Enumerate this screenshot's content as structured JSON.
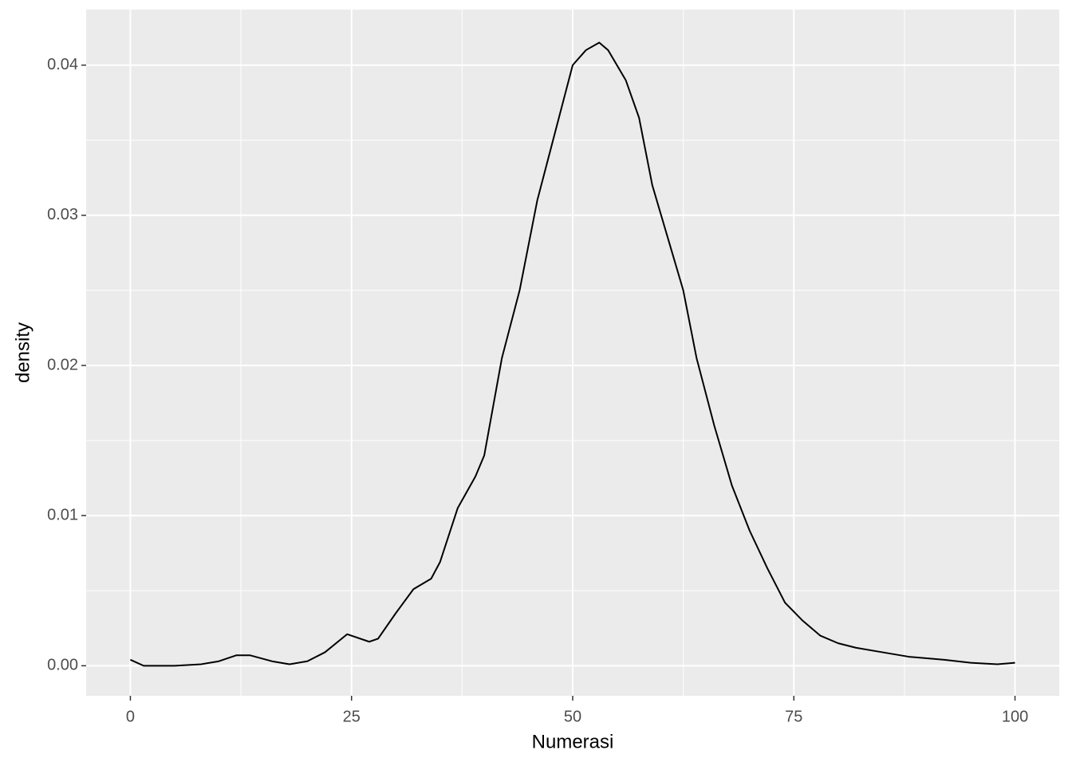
{
  "chart_data": {
    "type": "line",
    "x_label": "Numerasi",
    "y_label": "density",
    "x": [
      0,
      1.5,
      5,
      8,
      10,
      12,
      13.5,
      16,
      18,
      20,
      22,
      24.5,
      27,
      28,
      30,
      32,
      34,
      35,
      37,
      39,
      40,
      42,
      44,
      46,
      48,
      50,
      51.5,
      53,
      54,
      56,
      57.5,
      59,
      61,
      62.5,
      64,
      66,
      68,
      70,
      72,
      74,
      76,
      78,
      80,
      82,
      85,
      88,
      92,
      95,
      98,
      100
    ],
    "values": [
      0.0004,
      0.0,
      0.0,
      0.0001,
      0.0003,
      0.0007,
      0.0007,
      0.0003,
      0.0001,
      0.0003,
      0.0009,
      0.0021,
      0.0016,
      0.0018,
      0.0035,
      0.0051,
      0.0058,
      0.0069,
      0.0105,
      0.0126,
      0.014,
      0.0205,
      0.025,
      0.031,
      0.0355,
      0.04,
      0.041,
      0.0415,
      0.041,
      0.039,
      0.0365,
      0.032,
      0.028,
      0.025,
      0.0205,
      0.016,
      0.012,
      0.009,
      0.0065,
      0.0042,
      0.003,
      0.002,
      0.0015,
      0.0012,
      0.0009,
      0.0006,
      0.0004,
      0.0002,
      0.0001,
      0.0002
    ],
    "color": "#000000",
    "xlim": [
      -5,
      105
    ],
    "xticks": [
      0,
      25,
      50,
      75,
      100
    ],
    "ylim": [
      -0.002,
      0.0437
    ],
    "yticks": [
      {
        "value": 0,
        "label": "0.00"
      },
      0.01,
      0.02,
      0.03,
      0.04
    ],
    "grid": true
  }
}
